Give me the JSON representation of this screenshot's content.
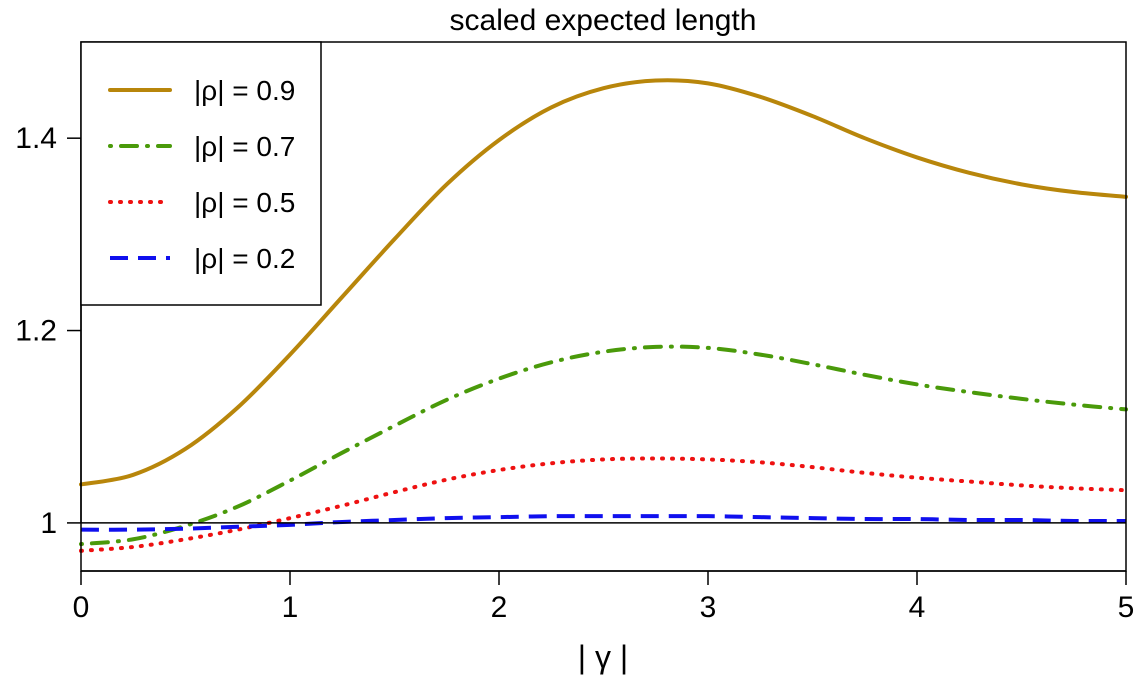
{
  "chart_data": {
    "type": "line",
    "title": "scaled expected length",
    "xlabel": "| γ |",
    "ylabel": "",
    "xlim": [
      0,
      5
    ],
    "ylim": [
      0.95,
      1.5
    ],
    "xticks": [
      0,
      1,
      2,
      3,
      4,
      5
    ],
    "xtick_labels": [
      "0",
      "1",
      "2",
      "3",
      "4",
      "5"
    ],
    "yticks": [
      1.0,
      1.2,
      1.4
    ],
    "ytick_labels": [
      "1",
      "1.2",
      "1.4"
    ],
    "reference_line": 1.0,
    "grid": false,
    "legend_position": "top-left",
    "series": [
      {
        "name": "|ρ| = 0.9",
        "color": "#b8860b",
        "dash": "solid",
        "x": [
          0,
          0.25,
          0.5,
          0.75,
          1.0,
          1.25,
          1.5,
          1.75,
          2.0,
          2.25,
          2.5,
          2.75,
          3.0,
          3.25,
          3.5,
          3.75,
          4.0,
          4.25,
          4.5,
          4.75,
          5.0
        ],
        "y": [
          1.04,
          1.05,
          1.077,
          1.12,
          1.175,
          1.235,
          1.295,
          1.352,
          1.398,
          1.432,
          1.452,
          1.46,
          1.457,
          1.443,
          1.423,
          1.4,
          1.38,
          1.364,
          1.352,
          1.344,
          1.339
        ]
      },
      {
        "name": "|ρ| = 0.7",
        "color": "#4a9a0a",
        "dash": "dashdot",
        "x": [
          0,
          0.25,
          0.5,
          0.75,
          1.0,
          1.25,
          1.5,
          1.75,
          2.0,
          2.25,
          2.5,
          2.75,
          3.0,
          3.25,
          3.5,
          3.75,
          4.0,
          4.25,
          4.5,
          4.75,
          5.0
        ],
        "y": [
          0.978,
          0.983,
          0.997,
          1.017,
          1.044,
          1.073,
          1.101,
          1.128,
          1.15,
          1.167,
          1.178,
          1.183,
          1.182,
          1.175,
          1.165,
          1.154,
          1.144,
          1.136,
          1.129,
          1.123,
          1.118
        ]
      },
      {
        "name": "|ρ| = 0.5",
        "color": "#ee1111",
        "dash": "dotted",
        "x": [
          0,
          0.25,
          0.5,
          0.75,
          1.0,
          1.25,
          1.5,
          1.75,
          2.0,
          2.25,
          2.5,
          2.75,
          3.0,
          3.25,
          3.5,
          3.75,
          4.0,
          4.25,
          4.5,
          4.75,
          5.0
        ],
        "y": [
          0.971,
          0.975,
          0.983,
          0.993,
          1.005,
          1.018,
          1.032,
          1.045,
          1.055,
          1.062,
          1.066,
          1.067,
          1.066,
          1.063,
          1.058,
          1.052,
          1.047,
          1.043,
          1.039,
          1.036,
          1.034
        ]
      },
      {
        "name": "|ρ| = 0.2",
        "color": "#1010ee",
        "dash": "dashed",
        "x": [
          0,
          0.25,
          0.5,
          0.75,
          1.0,
          1.25,
          1.5,
          1.75,
          2.0,
          2.25,
          2.5,
          2.75,
          3.0,
          3.25,
          3.5,
          3.75,
          4.0,
          4.25,
          4.5,
          4.75,
          5.0
        ],
        "y": [
          0.993,
          0.993,
          0.994,
          0.996,
          0.998,
          1.001,
          1.003,
          1.005,
          1.006,
          1.007,
          1.007,
          1.007,
          1.007,
          1.006,
          1.005,
          1.004,
          1.004,
          1.003,
          1.003,
          1.002,
          1.002
        ]
      }
    ]
  }
}
